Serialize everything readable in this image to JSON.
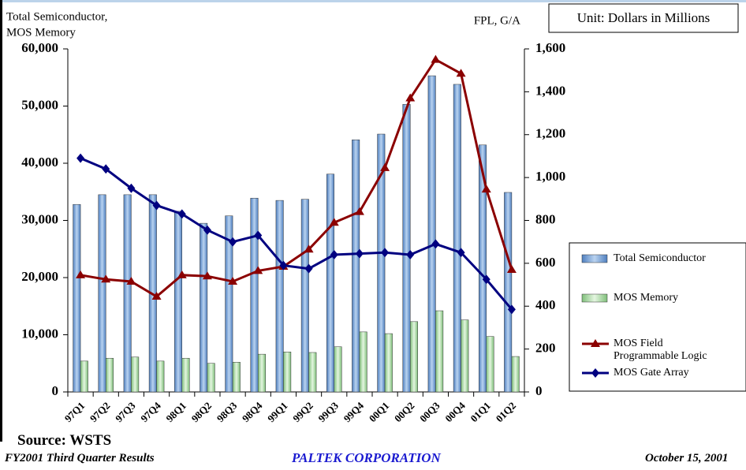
{
  "chart_data": {
    "type": "bar_line",
    "y_label": [
      "Total Semiconductor,",
      "MOS Memory"
    ],
    "y2_label": "FPL, G/A",
    "unit_note": "Unit: Dollars in Millions",
    "categories": [
      "97Q1",
      "97Q2",
      "97Q3",
      "97Q4",
      "98Q1",
      "98Q2",
      "98Q3",
      "98Q4",
      "99Q1",
      "99Q2",
      "99Q3",
      "99Q4",
      "00Q1",
      "00Q2",
      "00Q3",
      "00Q4",
      "01Q1",
      "01Q2"
    ],
    "series": [
      {
        "name": "Total Semiconductor",
        "kind": "bar",
        "color": "#7aa6d8",
        "values": [
          32800,
          34500,
          34500,
          34500,
          31600,
          29500,
          30800,
          33900,
          33500,
          33700,
          38100,
          44100,
          45100,
          50300,
          55300,
          53800,
          43200,
          34900
        ]
      },
      {
        "name": "MOS Memory",
        "kind": "bar",
        "color": "#b6e0b0",
        "values": [
          5400,
          5900,
          6100,
          5400,
          5900,
          5000,
          5200,
          6600,
          7000,
          6900,
          7900,
          10500,
          10200,
          12300,
          14200,
          12600,
          9700,
          6200
        ]
      },
      {
        "name": "MOS Field Programmable Logic",
        "kind": "line",
        "axis": "y2",
        "marker": "triangle",
        "color": "#8b0000",
        "values": [
          545,
          525,
          515,
          445,
          545,
          540,
          515,
          565,
          585,
          665,
          790,
          840,
          1045,
          1370,
          1550,
          1485,
          945,
          570
        ]
      },
      {
        "name": "MOS Gate Array",
        "kind": "line",
        "axis": "y2",
        "marker": "diamond",
        "color": "#000080",
        "values": [
          1090,
          1040,
          950,
          870,
          830,
          755,
          700,
          730,
          590,
          575,
          640,
          645,
          650,
          640,
          690,
          650,
          525,
          385
        ]
      }
    ],
    "ylim": [
      0,
      60000
    ],
    "yticks": [
      0,
      {
        "value": 10000,
        "label": "10,000"
      },
      {
        "value": 20000,
        "label": "20,000"
      },
      {
        "value": 30000,
        "label": "30,000"
      },
      {
        "value": 40000,
        "label": "40,000"
      },
      {
        "value": 50000,
        "label": "50,000"
      },
      {
        "value": 60000,
        "label": "60,000"
      }
    ],
    "y2lim": [
      0,
      1600
    ],
    "y2ticks": [
      0,
      200,
      400,
      600,
      800,
      {
        "value": 1000,
        "label": "1,000"
      },
      {
        "value": 1200,
        "label": "1,200"
      },
      {
        "value": 1400,
        "label": "1,400"
      },
      {
        "value": 1600,
        "label": "1,600"
      }
    ],
    "legend": "right",
    "grid": false
  },
  "footer": {
    "source": "Source: WSTS",
    "left": "FY2001 Third Quarter Results",
    "center": "PALTEK CORPORATION",
    "right": "October 15, 2001"
  }
}
